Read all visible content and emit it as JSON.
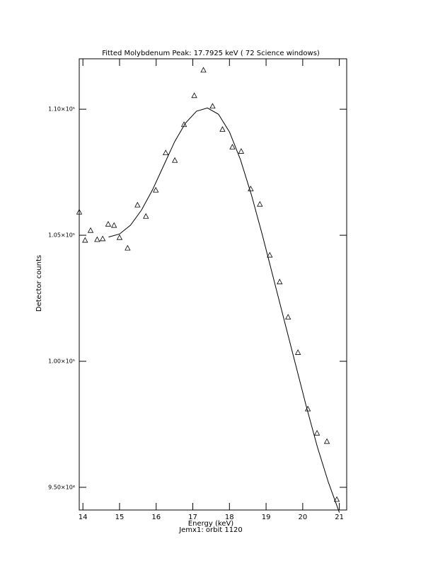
{
  "chart_data": {
    "type": "scatter",
    "title": "Fitted Molybdenum Peak:      17.7925 keV (      72 Science windows)",
    "x_label": "Energy (keV)",
    "subtitle": "Jemx1: orbit 1120",
    "y_label": "Detector counts",
    "xlim": [
      13.9,
      21.2
    ],
    "ylim": [
      94100,
      112000
    ],
    "xticks": [
      14,
      15,
      16,
      17,
      18,
      19,
      20,
      21
    ],
    "yticks": [
      {
        "value": 95000,
        "label": "9.50×10⁴"
      },
      {
        "value": 100000,
        "label": "1.00×10⁵"
      },
      {
        "value": 105000,
        "label": "1.05×10⁵"
      },
      {
        "value": 110000,
        "label": "1.10×10⁵"
      }
    ],
    "color": "#000000",
    "points": {
      "x": [
        13.9,
        14.06,
        14.21,
        14.39,
        14.54,
        14.69,
        14.85,
        15.0,
        15.22,
        15.49,
        15.72,
        15.99,
        16.26,
        16.51,
        16.76,
        17.04,
        17.29,
        17.54,
        17.81,
        18.08,
        18.32,
        18.58,
        18.83,
        19.1,
        19.37,
        19.6,
        19.87,
        20.14,
        20.39,
        20.66,
        20.93
      ],
      "y": [
        105910,
        104790,
        105180,
        104820,
        104850,
        105430,
        105380,
        104900,
        104480,
        106190,
        105740,
        106780,
        108260,
        107960,
        109380,
        110530,
        111540,
        110110,
        109190,
        108490,
        108320,
        106830,
        106220,
        104200,
        103140,
        101740,
        100340,
        98100,
        97140,
        96810,
        94510
      ]
    },
    "fit": {
      "x": [
        14.7,
        15.0,
        15.3,
        15.6,
        15.9,
        16.2,
        16.5,
        16.8,
        17.1,
        17.4,
        17.7,
        18.0,
        18.3,
        18.6,
        18.9,
        19.2,
        19.5,
        19.8,
        20.1,
        20.4,
        20.7,
        21.0
      ],
      "y": [
        104930,
        105050,
        105400,
        106000,
        106800,
        107750,
        108700,
        109450,
        109920,
        110050,
        109800,
        109100,
        108000,
        106600,
        105000,
        103300,
        101600,
        99900,
        98200,
        96600,
        95200,
        94000
      ]
    }
  }
}
